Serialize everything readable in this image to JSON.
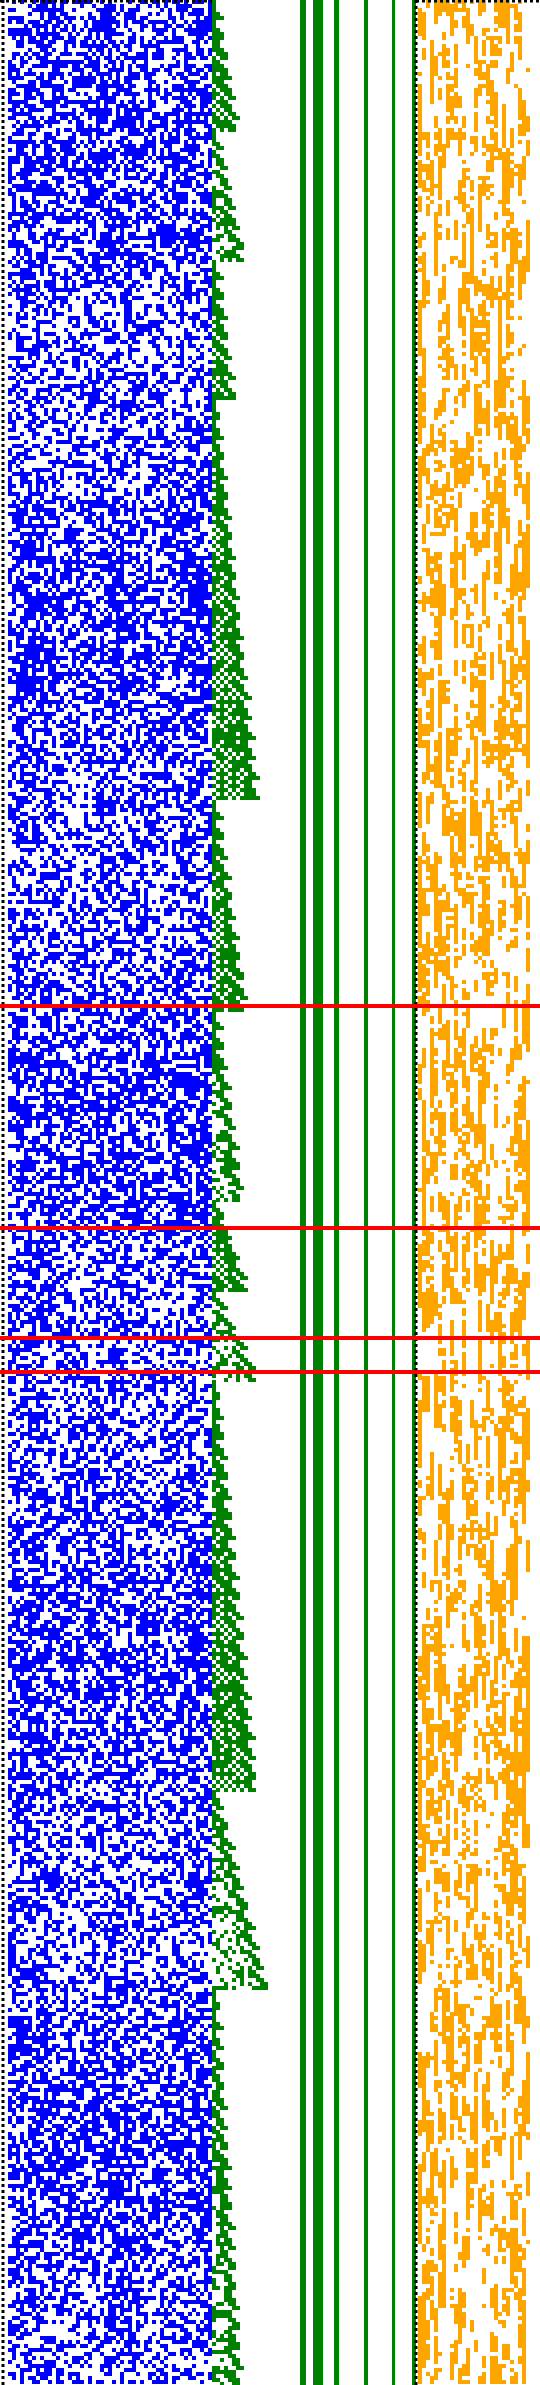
{
  "colors": {
    "background": "#ffffff",
    "left_pattern": "#0000ff",
    "staircase_and_bars": "#008000",
    "right_pattern": "#ffa500",
    "dotted_border": "#000000",
    "highlight_lines": "#ff0000"
  },
  "panels": {
    "left": {
      "description_key": "blue-cellular-pattern"
    },
    "middle": {
      "description_key": "green-staircase-and-vertical-bars"
    },
    "right": {
      "description_key": "orange-column-pattern"
    }
  },
  "highlight_lines": {
    "count": 4
  }
}
